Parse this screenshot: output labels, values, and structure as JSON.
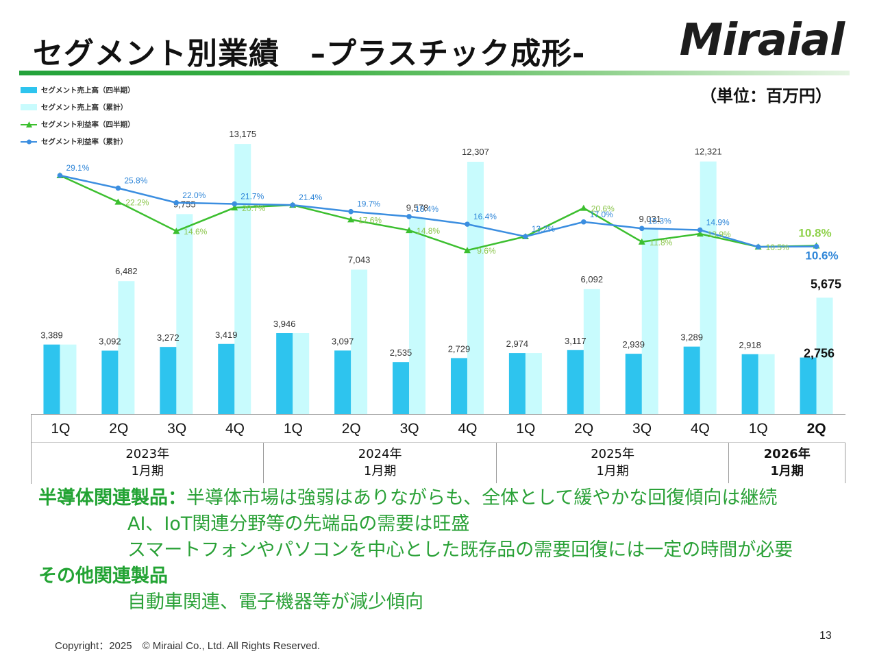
{
  "header": {
    "title": "セグメント別業績　–プラスチック成形-",
    "logo": "Miraial",
    "unit": "（単位：百万円）"
  },
  "colors": {
    "bar_quarter": "#2ec4ee",
    "bar_cumulative": "#c8fbfd",
    "line_quarter": "#3cbf2f",
    "line_cumulative": "#3b8ee0",
    "note_green": "#2aa137"
  },
  "chart_data": {
    "type": "bar",
    "categories": [
      "1Q",
      "2Q",
      "3Q",
      "4Q",
      "1Q",
      "2Q",
      "3Q",
      "4Q",
      "1Q",
      "2Q",
      "3Q",
      "4Q",
      "1Q",
      "2Q"
    ],
    "year_groups": [
      {
        "label": "2023年",
        "sub": "1月期",
        "span": 4,
        "bold": false
      },
      {
        "label": "2024年",
        "sub": "1月期",
        "span": 4,
        "bold": false
      },
      {
        "label": "2025年",
        "sub": "1月期",
        "span": 4,
        "bold": false
      },
      {
        "label": "2026年",
        "sub": "1月期",
        "span": 2,
        "bold": true
      }
    ],
    "series": [
      {
        "name": "セグメント売上高（四半期）",
        "kind": "bar",
        "values": [
          3389,
          3092,
          3272,
          3419,
          3946,
          3097,
          2535,
          2729,
          2974,
          3117,
          2939,
          3289,
          2918,
          2756
        ],
        "labels": [
          "3,389",
          "3,092",
          "3,272",
          "3,419",
          "3,946",
          "3,097",
          "2,535",
          "2,729",
          "2,974",
          "3,117",
          "2,939",
          "3,289",
          "2,918",
          "2,756"
        ]
      },
      {
        "name": "セグメント売上高（累計）",
        "kind": "bar",
        "values": [
          3389,
          6482,
          9755,
          13175,
          3946,
          7043,
          9578,
          12307,
          2974,
          6092,
          9031,
          12321,
          2918,
          5675
        ],
        "labels": [
          "",
          "6,482",
          "9,755",
          "13,175",
          "",
          "7,043",
          "9,578",
          "12,307",
          "",
          "6,092",
          "9,031",
          "12,321",
          "",
          "5,675"
        ]
      },
      {
        "name": "セグメント利益率（四半期）",
        "kind": "line",
        "values": [
          29.1,
          22.2,
          14.6,
          20.7,
          21.4,
          17.6,
          14.8,
          9.6,
          13.2,
          20.6,
          11.8,
          13.9,
          10.5,
          10.8
        ],
        "labels": [
          "",
          "22.2%",
          "14.6%",
          "20.7%",
          "",
          "17.6%",
          "14.8%",
          "9.6%",
          "",
          "20.6%",
          "11.8%",
          "13.9%",
          "10.5%",
          "10.8%"
        ]
      },
      {
        "name": "セグメント利益率（累計）",
        "kind": "line",
        "values": [
          29.1,
          25.8,
          22.0,
          21.7,
          21.4,
          19.7,
          18.4,
          16.4,
          13.2,
          17.0,
          15.3,
          14.9,
          10.5,
          10.6
        ],
        "labels": [
          "29.1%",
          "25.8%",
          "22.0%",
          "21.7%",
          "21.4%",
          "19.7%",
          "18.4%",
          "16.4%",
          "13.2%",
          "17.0%",
          "15.3%",
          "14.9%",
          "",
          "10.6%"
        ]
      }
    ],
    "ylim_sales": [
      0,
      15000
    ],
    "ylim_rate": [
      0,
      40
    ],
    "legend_position": "top-left",
    "grid": false
  },
  "notes": {
    "semi_head": "半導体関連製品：",
    "semi_line1": "半導体市場は強弱はありながらも、全体として緩やかな回復傾向は継続",
    "semi_line2": "AI、IoT関連分野等の先端品の需要は旺盛",
    "semi_line3": "スマートフォンやパソコンを中心とした既存品の需要回復には一定の時間が必要",
    "other_head": "その他関連製品",
    "other_line1": "自動車関連、電子機器等が減少傾向"
  },
  "footer": {
    "copyright": "Copyright：2025　© Miraial Co., Ltd. All Rights Reserved.",
    "page": "13"
  }
}
